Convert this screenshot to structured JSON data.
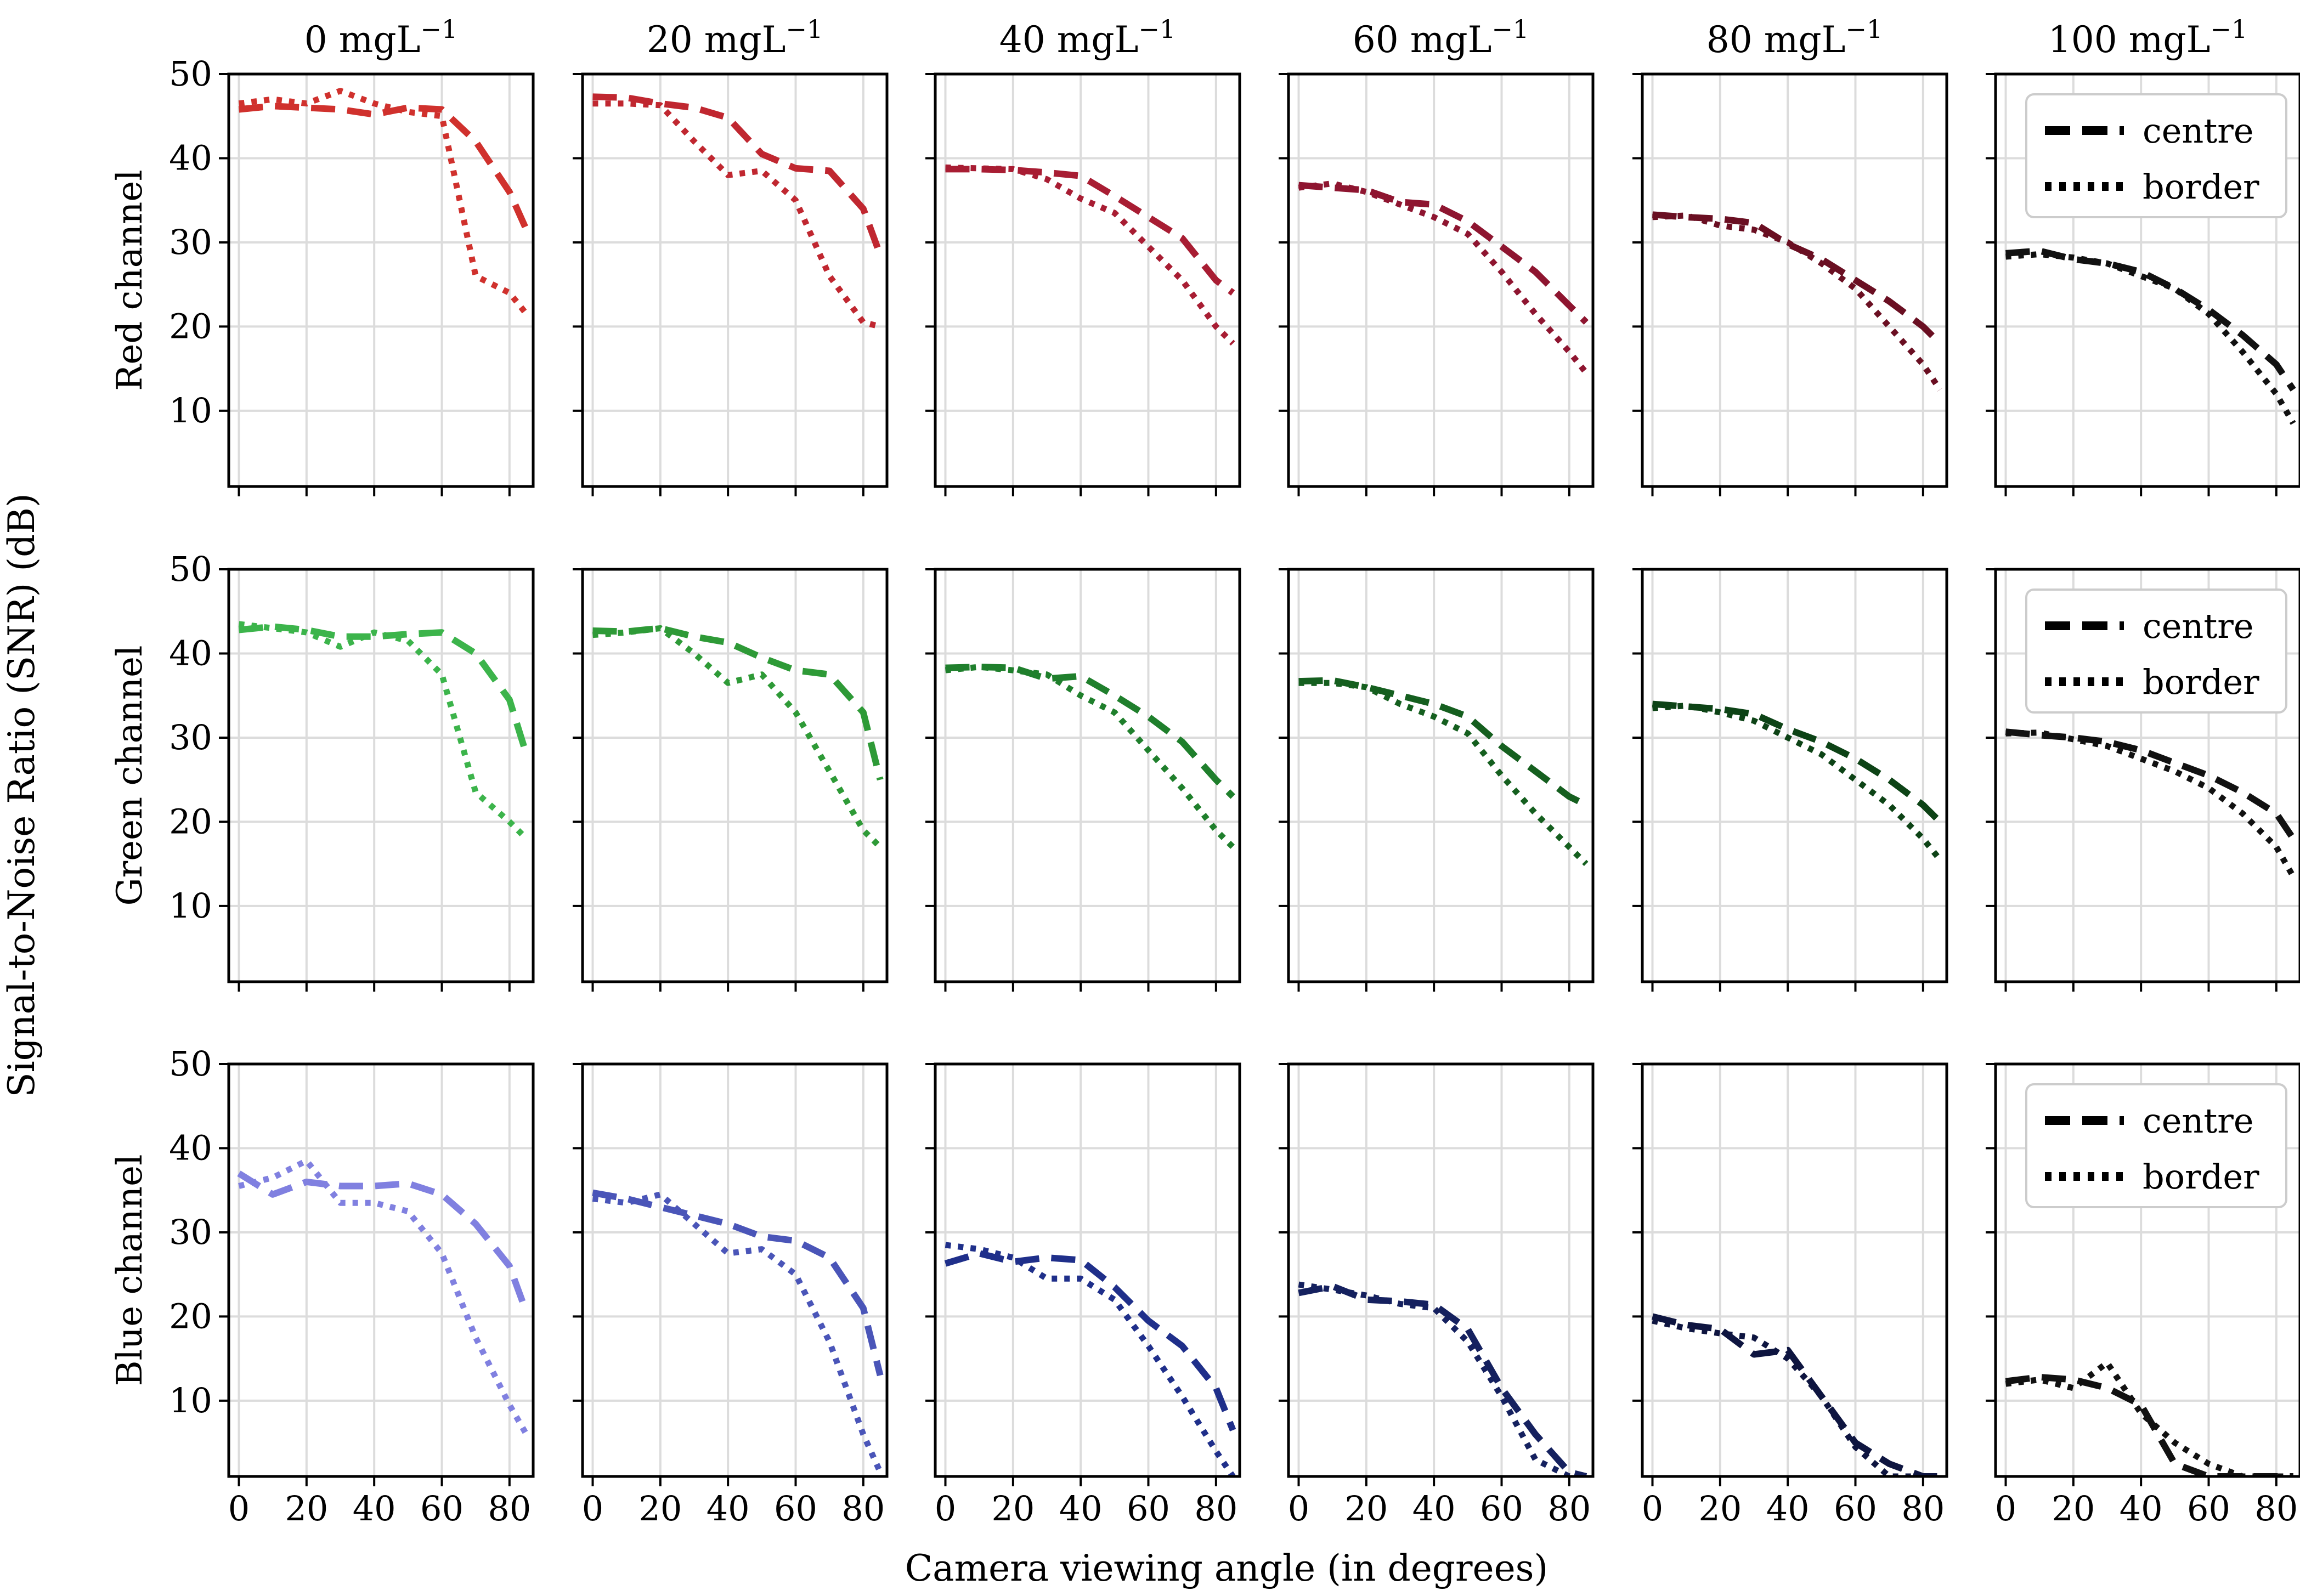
{
  "figure": {
    "xlabel": "Camera viewing angle (in degrees)",
    "ylabel": "Signal-to-Noise Ratio (SNR)  (dB)"
  },
  "columns": [
    {
      "title": "0 mgL",
      "superscript": "−1"
    },
    {
      "title": "20 mgL",
      "superscript": "−1"
    },
    {
      "title": "40 mgL",
      "superscript": "−1"
    },
    {
      "title": "60 mgL",
      "superscript": "−1"
    },
    {
      "title": "80 mgL",
      "superscript": "−1"
    },
    {
      "title": "100 mgL",
      "superscript": "−1"
    }
  ],
  "rows": [
    {
      "label": "Red channel",
      "colors": [
        "#d0312d",
        "#c02730",
        "#a81d33",
        "#8e1530",
        "#6a0f22",
        "#111111"
      ]
    },
    {
      "label": "Green channel",
      "colors": [
        "#3cb44b",
        "#2e9a37",
        "#1f7f2c",
        "#155f1f",
        "#0d4316",
        "#111111"
      ]
    },
    {
      "label": "Blue channel",
      "colors": [
        "#8080e0",
        "#4a55b8",
        "#1f2f8a",
        "#15215f",
        "#0e1540",
        "#111111"
      ]
    }
  ],
  "legend": {
    "centre": "centre",
    "border": "border",
    "color": "#000000"
  },
  "chart_data": {
    "type": "line",
    "x": [
      0,
      10,
      20,
      30,
      40,
      50,
      60,
      70,
      80,
      85
    ],
    "xticks": [
      "0",
      "20",
      "40",
      "60",
      "80"
    ],
    "yticks": [
      "10",
      "20",
      "30",
      "40",
      "50"
    ],
    "xlim": [
      -3,
      87
    ],
    "ylim": [
      1,
      50
    ],
    "series_names": [
      "centre",
      "border"
    ],
    "panels": [
      [
        {
          "centre": [
            45.8,
            46.2,
            46.0,
            45.8,
            45.2,
            46.0,
            45.8,
            42.0,
            36.0,
            31.5
          ],
          "border": [
            46.5,
            47.0,
            46.5,
            48.0,
            46.5,
            45.5,
            45.0,
            26.0,
            24.0,
            21.5
          ]
        },
        {
          "centre": [
            47.3,
            47.2,
            46.5,
            46.0,
            44.8,
            40.5,
            38.8,
            38.5,
            34.0,
            28.5
          ],
          "border": [
            46.5,
            46.5,
            46.3,
            42.0,
            38.0,
            38.5,
            35.0,
            26.0,
            20.5,
            20.0
          ]
        },
        {
          "centre": [
            38.7,
            38.7,
            38.6,
            38.3,
            37.9,
            35.5,
            33.0,
            30.5,
            25.5,
            24.0
          ],
          "border": [
            38.9,
            38.8,
            38.7,
            37.5,
            35.2,
            33.5,
            29.5,
            25.5,
            20.0,
            18.0
          ]
        },
        {
          "centre": [
            36.8,
            36.5,
            36.2,
            34.8,
            34.5,
            32.5,
            29.5,
            26.5,
            22.5,
            20.5
          ],
          "border": [
            36.5,
            37.0,
            36.0,
            34.5,
            33.0,
            31.0,
            26.5,
            21.5,
            17.0,
            14.5
          ]
        },
        {
          "centre": [
            33.3,
            33.0,
            32.8,
            32.3,
            29.8,
            28.0,
            25.5,
            23.0,
            20.0,
            18.0
          ],
          "border": [
            33.0,
            33.2,
            32.0,
            31.5,
            30.0,
            27.5,
            24.5,
            20.0,
            15.5,
            12.5
          ]
        },
        {
          "centre": [
            28.7,
            29.0,
            28.0,
            27.5,
            26.5,
            24.5,
            22.0,
            19.0,
            15.5,
            12.5
          ],
          "border": [
            28.3,
            28.6,
            28.2,
            27.5,
            26.0,
            24.5,
            21.5,
            17.0,
            12.0,
            8.5
          ]
        }
      ],
      [
        {
          "centre": [
            42.8,
            43.2,
            42.8,
            42.0,
            42.0,
            42.3,
            42.5,
            40.0,
            34.5,
            28.0
          ],
          "border": [
            43.5,
            43.0,
            42.5,
            40.8,
            42.5,
            41.5,
            37.5,
            23.5,
            20.0,
            18.0
          ]
        },
        {
          "centre": [
            42.7,
            42.6,
            43.0,
            42.0,
            41.3,
            39.5,
            38.0,
            37.5,
            33.0,
            25.0
          ],
          "border": [
            42.2,
            42.5,
            43.0,
            40.0,
            36.5,
            37.5,
            33.0,
            26.0,
            19.0,
            17.0
          ]
        },
        {
          "centre": [
            38.3,
            38.4,
            38.3,
            37.0,
            37.3,
            35.0,
            32.5,
            29.5,
            25.0,
            23.0
          ],
          "border": [
            38.0,
            38.4,
            38.0,
            37.5,
            35.0,
            33.0,
            28.5,
            24.0,
            19.0,
            17.0
          ]
        },
        {
          "centre": [
            36.7,
            36.8,
            36.0,
            35.0,
            34.0,
            32.5,
            29.0,
            26.0,
            23.0,
            22.0
          ],
          "border": [
            36.5,
            36.5,
            36.0,
            34.0,
            32.5,
            30.5,
            25.5,
            21.0,
            17.0,
            15.0
          ]
        },
        {
          "centre": [
            34.0,
            33.7,
            33.4,
            32.8,
            31.0,
            29.5,
            27.5,
            25.0,
            22.0,
            20.0
          ],
          "border": [
            33.5,
            33.8,
            33.0,
            32.0,
            30.0,
            28.0,
            25.0,
            22.0,
            18.0,
            15.5
          ]
        },
        {
          "centre": [
            30.7,
            30.3,
            30.0,
            29.5,
            28.5,
            27.0,
            25.5,
            23.5,
            21.0,
            18.0
          ],
          "border": [
            30.5,
            30.6,
            29.8,
            29.0,
            27.5,
            26.0,
            24.0,
            21.0,
            17.0,
            13.5
          ]
        }
      ],
      [
        {
          "centre": [
            37.0,
            34.5,
            36.0,
            35.5,
            35.5,
            35.8,
            34.5,
            31.0,
            26.0,
            20.5
          ],
          "border": [
            35.5,
            36.5,
            38.5,
            33.5,
            33.5,
            32.5,
            27.5,
            17.5,
            9.5,
            6.0
          ]
        },
        {
          "centre": [
            34.7,
            34.0,
            33.0,
            32.0,
            31.0,
            29.5,
            29.0,
            27.0,
            21.0,
            13.0
          ],
          "border": [
            34.0,
            33.5,
            34.5,
            31.0,
            27.5,
            28.0,
            25.0,
            17.0,
            6.0,
            1.5
          ]
        },
        {
          "centre": [
            26.3,
            27.5,
            26.5,
            27.0,
            26.7,
            23.5,
            19.5,
            16.5,
            11.5,
            6.5
          ],
          "border": [
            28.5,
            28.0,
            27.0,
            24.5,
            24.5,
            22.0,
            16.5,
            10.5,
            4.0,
            1.0
          ]
        },
        {
          "centre": [
            22.8,
            23.6,
            22.0,
            21.8,
            21.4,
            18.5,
            11.5,
            6.0,
            1.5,
            1.0
          ],
          "border": [
            23.8,
            23.2,
            22.5,
            21.5,
            21.0,
            17.0,
            10.5,
            3.0,
            1.0,
            1.0
          ]
        },
        {
          "centre": [
            20.0,
            19.0,
            18.5,
            15.5,
            16.0,
            10.5,
            5.0,
            2.5,
            1.0,
            1.0
          ],
          "border": [
            19.5,
            18.6,
            18.0,
            17.5,
            15.0,
            10.5,
            4.5,
            1.0,
            1.0,
            1.0
          ]
        },
        {
          "centre": [
            12.3,
            12.8,
            12.5,
            11.5,
            9.5,
            2.5,
            1.0,
            1.0,
            1.0,
            1.0
          ],
          "border": [
            12.0,
            12.5,
            11.5,
            14.5,
            8.5,
            5.0,
            2.5,
            1.0,
            1.0,
            1.0
          ]
        }
      ]
    ]
  }
}
